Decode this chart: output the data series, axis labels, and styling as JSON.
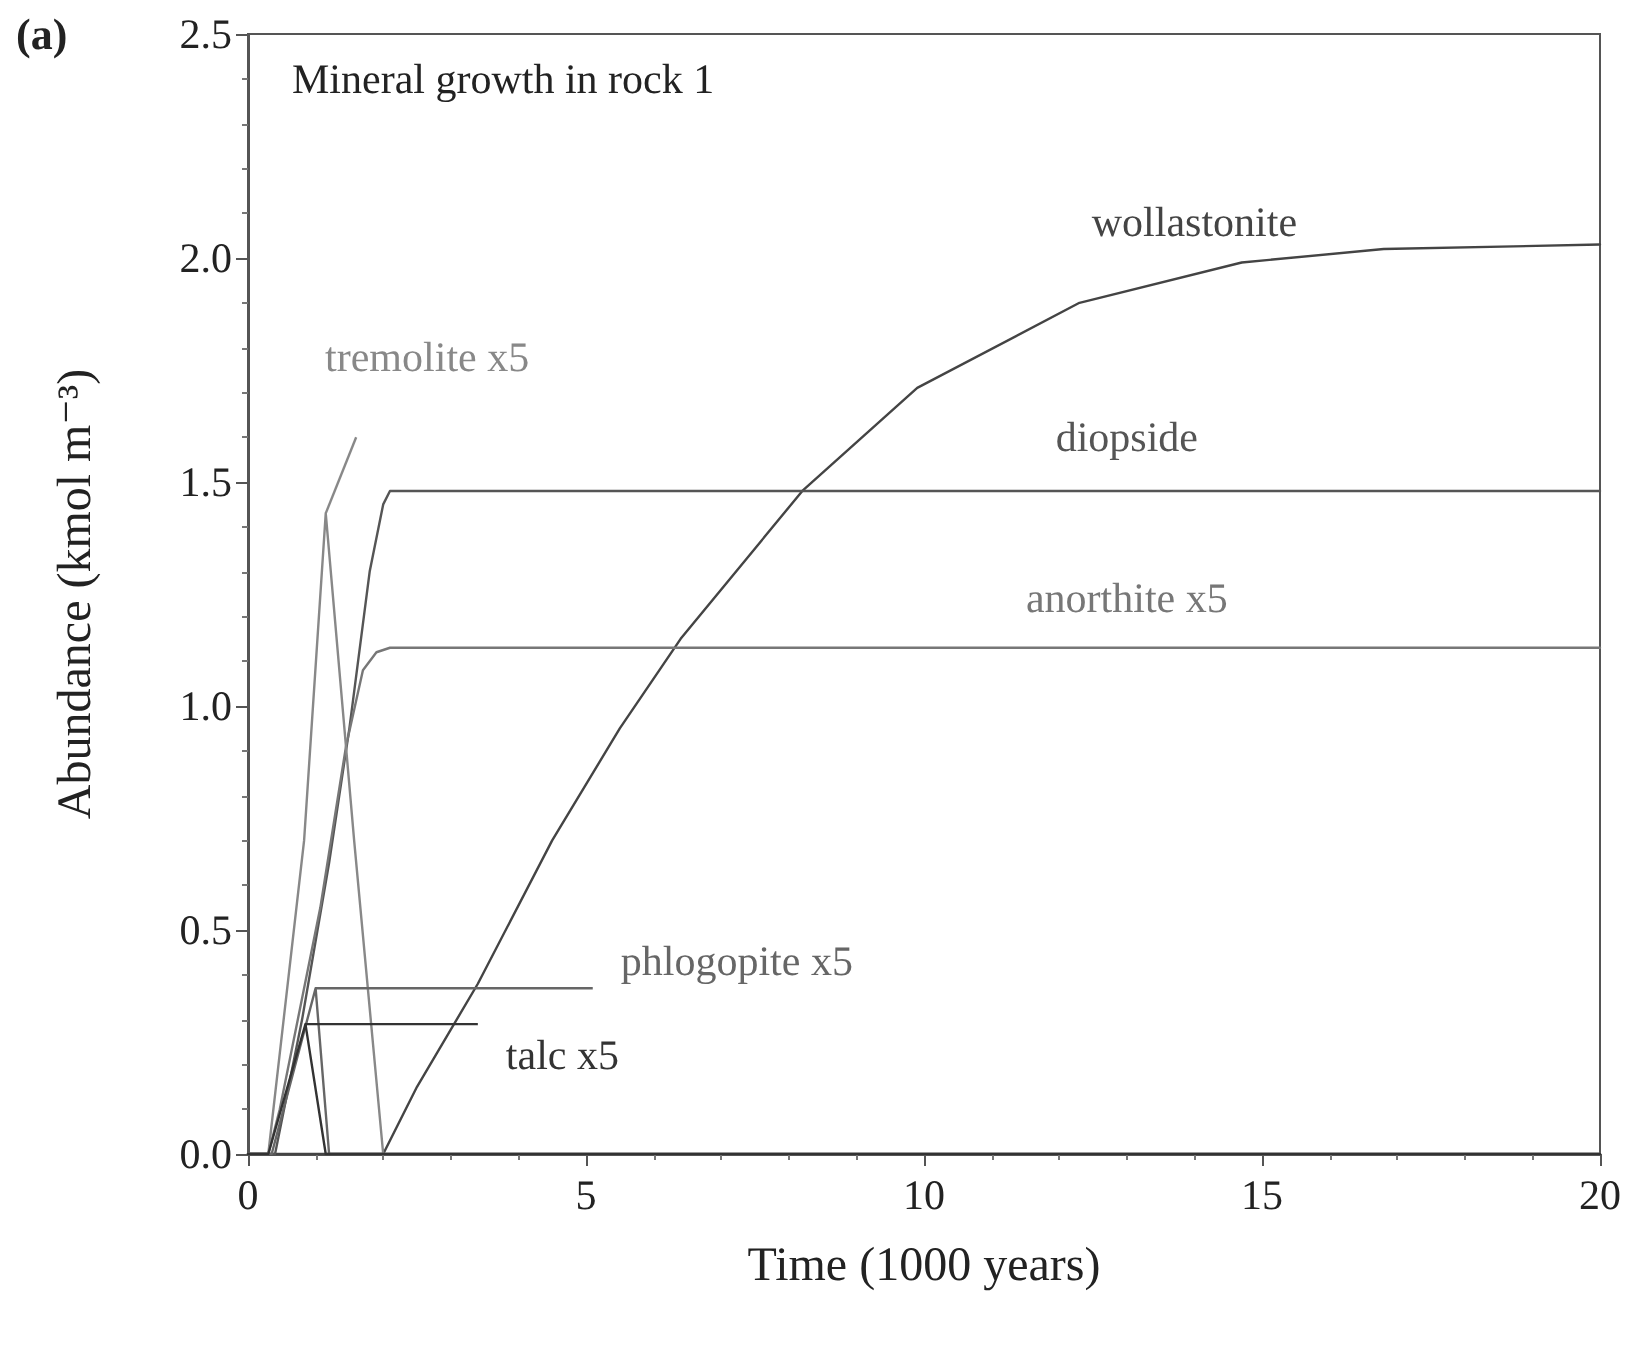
{
  "chart_data": {
    "type": "line",
    "title": "Mineral growth in rock 1",
    "xlabel": "Time (1000 years)",
    "ylabel": "Abundance (kmol m⁻³)",
    "annotations": [
      "(a)"
    ],
    "xlim": [
      0,
      20
    ],
    "xticks": [
      0,
      5,
      10,
      15,
      20
    ],
    "ylim": [
      0,
      2.5
    ],
    "yticks": [
      {
        "value": 0,
        "label": "0.0"
      },
      0.5,
      {
        "value": 1,
        "label": "1.0"
      },
      1.5,
      {
        "value": 2,
        "label": "2.0"
      },
      2.5
    ],
    "grid": false,
    "legend": false,
    "marker": "none",
    "line_style": "solid",
    "series": [
      {
        "name": "wollastonite",
        "color": "#444444",
        "x": [
          0,
          2.0,
          2.5,
          3.4,
          4.5,
          5.5,
          6.4,
          8.2,
          9.9,
          12.3,
          14.7,
          16.8,
          20
        ],
        "values": [
          0,
          0,
          0.15,
          0.38,
          0.7,
          0.95,
          1.15,
          1.48,
          1.71,
          1.9,
          1.99,
          2.02,
          2.03
        ]
      },
      {
        "name": "diopside",
        "color": "#555555",
        "x": [
          0,
          0.4,
          0.8,
          1.2,
          1.5,
          1.8,
          2.0,
          2.1,
          20
        ],
        "values": [
          0,
          0,
          0.3,
          0.65,
          0.95,
          1.3,
          1.45,
          1.48,
          1.48
        ]
      },
      {
        "name": "anorthite x5",
        "color": "#777777",
        "x": [
          0,
          0.3,
          0.47,
          1.07,
          1.45,
          1.7,
          1.9,
          2.1,
          20
        ],
        "values": [
          0,
          0,
          0.1,
          0.55,
          0.91,
          1.08,
          1.12,
          1.13,
          1.13
        ]
      },
      {
        "name": "tremolite x5",
        "color": "#888888",
        "x": [
          0,
          0.3,
          0.83,
          1.15,
          1.57,
          2.0,
          20
        ],
        "values": [
          0,
          0,
          0.7,
          1.43,
          0.7,
          0,
          0
        ]
      },
      {
        "name": "phlogopite x5",
        "color": "#666666",
        "x": [
          0,
          0.35,
          1.0,
          1.2,
          20
        ],
        "values": [
          0,
          0,
          0.37,
          0,
          0
        ]
      },
      {
        "name": "talc x5",
        "color": "#333333",
        "x": [
          0,
          0.3,
          0.85,
          1.15,
          20
        ],
        "values": [
          0,
          0,
          0.29,
          0,
          0
        ]
      }
    ]
  }
}
